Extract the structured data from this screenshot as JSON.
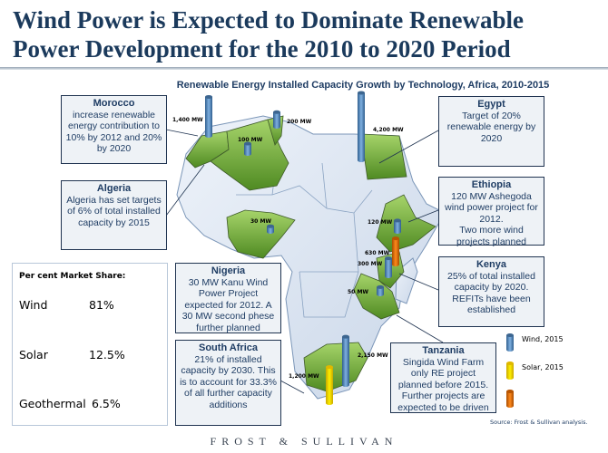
{
  "title": {
    "line1": "Wind Power is Expected to Dominate Renewable",
    "line2": "Power Development for the 2010 to 2020 Period"
  },
  "subtitle": "Renewable Energy Installed Capacity Growth by Technology, Africa, 2010-2015",
  "callouts": {
    "morocco": {
      "name": "Morocco",
      "text": "increase renewable energy contribution to 10% by 2012 and 20% by 2020"
    },
    "algeria": {
      "name": "Algeria",
      "text": "Algeria has set targets of 6% of total installed capacity by 2015"
    },
    "egypt": {
      "name": "Egypt",
      "text": "Target of 20% renewable energy by 2020"
    },
    "ethiopia": {
      "name": "Ethiopia",
      "text1": "120 MW Ashegoda wind power project for 2012.",
      "text2": "Two more wind projects planned"
    },
    "kenya": {
      "name": "Kenya",
      "text": "25% of total installed capacity by 2020. REFITs have been established"
    },
    "tanzania": {
      "name": "Tanzania",
      "text": "Singida Wind Farm only RE project planned before 2015. Further projects are expected to be driven"
    },
    "nigeria": {
      "name": "Nigeria",
      "text": "30 MW Kanu Wind Power Project expected for 2012. A 30 MW second phese further planned"
    },
    "south_africa": {
      "name": "South Africa",
      "text": "21% of installed capacity by 2030. This is to account for 33.3% of all further capacity additions"
    }
  },
  "market_share": {
    "heading": "Per cent Market Share:",
    "rows": [
      {
        "label": "Wind",
        "value": "81%"
      },
      {
        "label": "Solar",
        "value": "12.5%"
      },
      {
        "label": "Geothermal",
        "value": "6.5%"
      }
    ]
  },
  "chart_data": {
    "type": "map-bar",
    "title": "Renewable Energy Installed Capacity Growth by Technology, Africa, 2010-2015",
    "highlighted_countries": [
      "Morocco",
      "Algeria",
      "Tunisia",
      "Egypt",
      "Nigeria",
      "Ethiopia",
      "Kenya",
      "Tanzania",
      "South Africa"
    ],
    "markers": [
      {
        "country": "Morocco",
        "tech": "wind",
        "mw": 1400,
        "label": "1,400 MW"
      },
      {
        "country": "Tunisia",
        "tech": "wind",
        "mw": 200,
        "label": "200 MW"
      },
      {
        "country": "Algeria",
        "tech": "wind",
        "mw": 100,
        "label": "100 MW"
      },
      {
        "country": "Egypt",
        "tech": "wind",
        "mw": 4200,
        "label": "4,200 MW"
      },
      {
        "country": "Nigeria",
        "tech": "wind",
        "mw": 30,
        "label": "30 MW"
      },
      {
        "country": "Ethiopia",
        "tech": "wind",
        "mw": 120,
        "label": "120 MW"
      },
      {
        "country": "Ethiopia",
        "tech": "geothermal",
        "mw": 630,
        "label": "630 MW"
      },
      {
        "country": "Kenya",
        "tech": "wind",
        "mw": 300,
        "label": "300 MW"
      },
      {
        "country": "Tanzania",
        "tech": "wind",
        "mw": 50,
        "label": "50 MW"
      },
      {
        "country": "South Africa",
        "tech": "wind",
        "mw": 2150,
        "label": "2,150 MW"
      },
      {
        "country": "South Africa",
        "tech": "solar",
        "mw": 1200,
        "label": "1,200 MW"
      }
    ],
    "legend": [
      {
        "tech": "wind",
        "label": "Wind, 2015",
        "color": "#5b8fc7"
      },
      {
        "tech": "solar",
        "label": "Solar, 2015",
        "color": "#f2d200"
      },
      {
        "tech": "geothermal",
        "label": "",
        "color": "#e0730f"
      }
    ]
  },
  "colors": {
    "title": "#1b3a5c",
    "highlight": "#7fb53a",
    "land": "#dde6f2"
  },
  "source": "Source:  Frost & Sullivan analysis.",
  "brand": "FROST & SULLIVAN"
}
